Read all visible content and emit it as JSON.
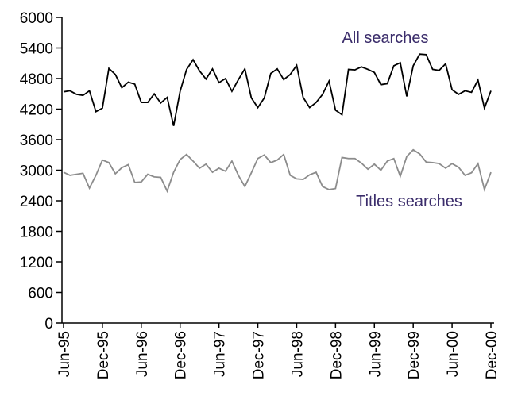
{
  "chart_data": {
    "type": "line",
    "annotations": [
      "All searches",
      "Titles searches"
    ],
    "annotation_color": "#3b2d6b",
    "categories": [
      "Jun-95",
      null,
      null,
      null,
      null,
      null,
      "Dec-95",
      null,
      null,
      null,
      null,
      null,
      "Jun-96",
      null,
      null,
      null,
      null,
      null,
      "Dec-96",
      null,
      null,
      null,
      null,
      null,
      "Jun-97",
      null,
      null,
      null,
      null,
      null,
      "Dec-97",
      null,
      null,
      null,
      null,
      null,
      "Jun-98",
      null,
      null,
      null,
      null,
      null,
      "Dec-98",
      null,
      null,
      null,
      null,
      null,
      "Jun-99",
      null,
      null,
      null,
      null,
      null,
      "Dec-99",
      null,
      null,
      null,
      null,
      null,
      "Jun-00",
      null,
      null,
      null,
      null,
      null,
      "Dec-00"
    ],
    "series": [
      {
        "name": "All searches",
        "color": "#000000",
        "values": [
          4540,
          4560,
          4490,
          4470,
          4560,
          4150,
          4220,
          5000,
          4880,
          4620,
          4730,
          4690,
          4330,
          4330,
          4500,
          4320,
          4430,
          3870,
          4550,
          4980,
          5170,
          4950,
          4790,
          4990,
          4720,
          4800,
          4550,
          4780,
          4990,
          4420,
          4230,
          4420,
          4900,
          4990,
          4780,
          4880,
          5060,
          4430,
          4230,
          4330,
          4490,
          4750,
          4180,
          4090,
          4980,
          4970,
          5030,
          4980,
          4920,
          4680,
          4700,
          5050,
          5110,
          4450,
          5050,
          5280,
          5270,
          4980,
          4960,
          5090,
          4580,
          4490,
          4560,
          4530,
          4770,
          4220,
          4560
        ]
      },
      {
        "name": "Titles searches",
        "color": "#8c8c8c",
        "values": [
          2960,
          2900,
          2920,
          2940,
          2650,
          2900,
          3200,
          3150,
          2930,
          3050,
          3110,
          2760,
          2770,
          2920,
          2870,
          2860,
          2590,
          2960,
          3210,
          3310,
          3180,
          3040,
          3120,
          2960,
          3040,
          2980,
          3180,
          2900,
          2680,
          2950,
          3230,
          3300,
          3150,
          3200,
          3310,
          2900,
          2830,
          2820,
          2910,
          2960,
          2680,
          2620,
          2640,
          3250,
          3230,
          3230,
          3140,
          3020,
          3120,
          3000,
          3180,
          3230,
          2880,
          3270,
          3400,
          3320,
          3160,
          3150,
          3130,
          3040,
          3130,
          3060,
          2900,
          2950,
          3130,
          2620,
          2960
        ]
      }
    ],
    "ylim": [
      0,
      6000
    ],
    "yticks": [
      0,
      600,
      1200,
      1800,
      2400,
      3000,
      3600,
      4200,
      4800,
      5400,
      6000
    ],
    "grid": false
  }
}
